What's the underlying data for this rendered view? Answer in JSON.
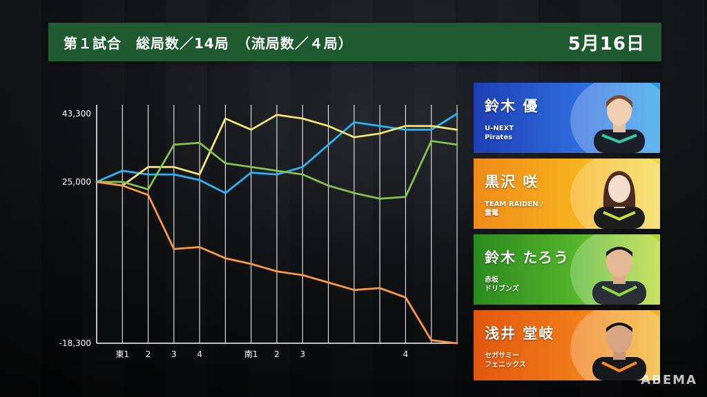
{
  "header": {
    "left": "第１試合　総局数／14局　（流局数／４局）",
    "date": "5月16日"
  },
  "chart_data": {
    "type": "line",
    "x_tick_labels": [
      "東1",
      "2",
      "3",
      "4",
      "南1",
      "2",
      "3",
      "4"
    ],
    "y_tick_labels": [
      "43,300",
      "25,000",
      "-18,300"
    ],
    "ylim": [
      -18300,
      43300
    ],
    "grid": "vertical",
    "n_points": 15,
    "series": [
      {
        "color": "#29b6f6",
        "values": [
          25000,
          28000,
          27000,
          27000,
          25500,
          22000,
          27500,
          27000,
          29000,
          35000,
          41000,
          40000,
          39000,
          39000,
          43300
        ]
      },
      {
        "color": "#f5e86a",
        "values": [
          25000,
          24000,
          29000,
          29000,
          27000,
          42000,
          39000,
          43000,
          42000,
          40000,
          37000,
          38000,
          40000,
          40000,
          39000
        ]
      },
      {
        "color": "#8bc34a",
        "values": [
          25000,
          25000,
          23000,
          35000,
          35500,
          30000,
          29000,
          28000,
          27000,
          24000,
          22000,
          20500,
          21000,
          36000,
          35000
        ]
      },
      {
        "color": "#ff9a3c",
        "values": [
          25000,
          24000,
          21500,
          7000,
          7500,
          4500,
          3000,
          1000,
          0,
          -2000,
          -4000,
          -3500,
          -6000,
          -17500,
          -18300
        ]
      }
    ]
  },
  "players": [
    {
      "name": "鈴木 優",
      "team": "U-NEXT\nPirates",
      "icon": "person-photo"
    },
    {
      "name": "黒沢 咲",
      "team": "TEAM RAIDEN /\n雷電",
      "icon": "person-photo"
    },
    {
      "name": "鈴木 たろう",
      "team": "赤坂\nドリブンズ",
      "icon": "person-photo"
    },
    {
      "name": "浅井 堂岐",
      "team": "セガサミー\nフェニックス",
      "icon": "person-photo"
    }
  ],
  "logo": "ABEMA"
}
